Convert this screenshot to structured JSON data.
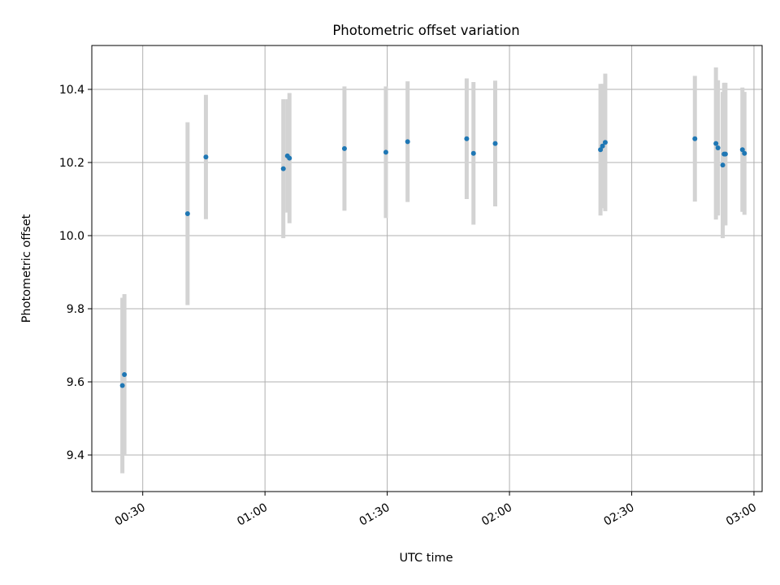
{
  "chart_data": {
    "type": "scatter",
    "title": "Photometric offset variation",
    "xlabel": "UTC time",
    "ylabel": "Photometric offset",
    "x_unit": "minutes",
    "xlim": [
      "00:17:30",
      "03:02:00"
    ],
    "ylim": [
      9.3,
      10.52
    ],
    "grid": true,
    "x_ticks": [
      {
        "value": "00:30",
        "label": "00:30"
      },
      {
        "value": "01:00",
        "label": "01:00"
      },
      {
        "value": "01:30",
        "label": "01:30"
      },
      {
        "value": "02:00",
        "label": "02:00"
      },
      {
        "value": "02:30",
        "label": "02:30"
      },
      {
        "value": "03:00",
        "label": "03:00"
      }
    ],
    "y_ticks": [
      {
        "value": 9.4,
        "label": "9.4"
      },
      {
        "value": 9.6,
        "label": "9.6"
      },
      {
        "value": 9.8,
        "label": "9.8"
      },
      {
        "value": 10.0,
        "label": "10.0"
      },
      {
        "value": 10.2,
        "label": "10.2"
      },
      {
        "value": 10.4,
        "label": "10.4"
      }
    ],
    "colors": {
      "points": "#1f77b4",
      "errorbars": "#d3d3d3",
      "grid": "#b0b0b0"
    },
    "series": [
      {
        "points": [
          {
            "x": "00:25:00",
            "y": 9.59,
            "err": 0.24
          },
          {
            "x": "00:25:30",
            "y": 9.62,
            "err": 0.22
          },
          {
            "x": "00:41:00",
            "y": 10.06,
            "err": 0.25
          },
          {
            "x": "00:45:30",
            "y": 10.215,
            "err": 0.17
          },
          {
            "x": "01:04:30",
            "y": 10.183,
            "err": 0.19
          },
          {
            "x": "01:05:30",
            "y": 10.218,
            "err": 0.155
          },
          {
            "x": "01:06:00",
            "y": 10.212,
            "err": 0.178
          },
          {
            "x": "01:19:30",
            "y": 10.238,
            "err": 0.17
          },
          {
            "x": "01:29:40",
            "y": 10.228,
            "err": 0.18
          },
          {
            "x": "01:35:00",
            "y": 10.257,
            "err": 0.165
          },
          {
            "x": "01:49:30",
            "y": 10.265,
            "err": 0.165
          },
          {
            "x": "01:51:10",
            "y": 10.225,
            "err": 0.195
          },
          {
            "x": "01:56:30",
            "y": 10.252,
            "err": 0.172
          },
          {
            "x": "02:22:20",
            "y": 10.235,
            "err": 0.18
          },
          {
            "x": "02:22:50",
            "y": 10.245,
            "err": 0.17
          },
          {
            "x": "02:23:30",
            "y": 10.255,
            "err": 0.188
          },
          {
            "x": "02:45:30",
            "y": 10.265,
            "err": 0.172
          },
          {
            "x": "02:50:40",
            "y": 10.252,
            "err": 0.208
          },
          {
            "x": "02:51:10",
            "y": 10.24,
            "err": 0.185
          },
          {
            "x": "02:52:20",
            "y": 10.193,
            "err": 0.2
          },
          {
            "x": "02:52:40",
            "y": 10.223,
            "err": 0.195
          },
          {
            "x": "02:53:00",
            "y": 10.223,
            "err": 0.195
          },
          {
            "x": "02:57:10",
            "y": 10.235,
            "err": 0.17
          },
          {
            "x": "02:57:40",
            "y": 10.225,
            "err": 0.168
          }
        ]
      }
    ]
  }
}
